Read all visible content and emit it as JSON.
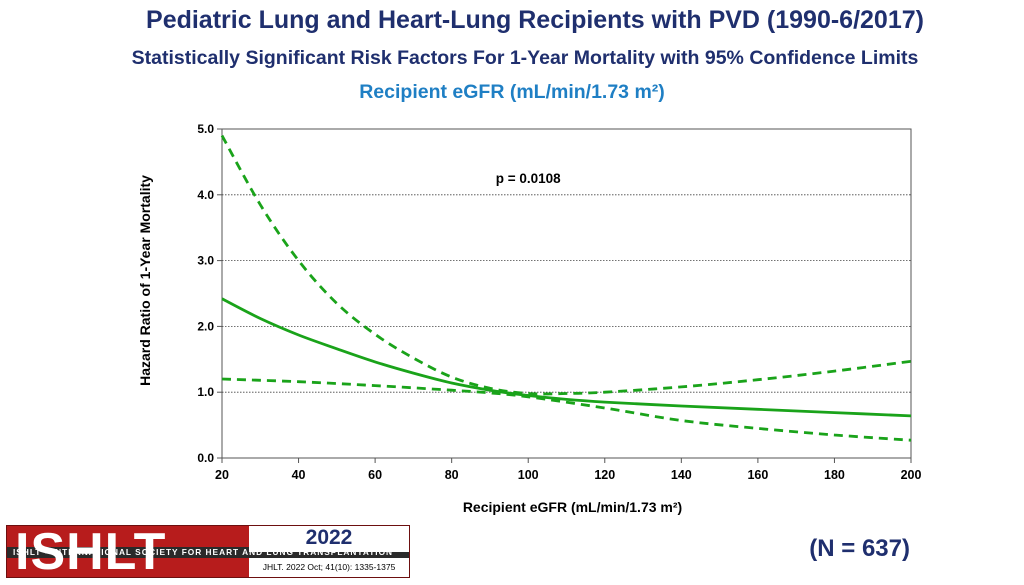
{
  "header": {
    "title": "Pediatric Lung and Heart-Lung Recipients with PVD (1990-6/2017)",
    "subtitle": "Statistically Significant Risk Factors For 1-Year Mortality with 95% Confidence Limits",
    "variable": "Recipient eGFR (mL/min/1.73 m²)"
  },
  "footer": {
    "n_label": "(N = 637)",
    "logo_text": "ISHLT",
    "logo_strip": "ISHLT • INTERNATIONAL SOCIETY FOR HEART AND LUNG TRANSPLANTATION",
    "year": "2022",
    "citation": "JHLT. 2022 Oct; 41(10): 1335-1375"
  },
  "colors": {
    "line": "#1aa31a",
    "title": "#1f2f6e",
    "variable": "#1f7fc4",
    "logo_red": "#b71c1c"
  },
  "chart_data": {
    "type": "line",
    "xlabel": "Recipient eGFR (mL/min/1.73 m²)",
    "ylabel": "Hazard Ratio of 1-Year Mortality",
    "xlim": [
      20,
      200
    ],
    "ylim": [
      0,
      5
    ],
    "xticks": [
      "20",
      "40",
      "60",
      "80",
      "100",
      "120",
      "140",
      "160",
      "180",
      "200"
    ],
    "yticks": [
      "0.0",
      "1.0",
      "2.0",
      "3.0",
      "4.0",
      "5.0"
    ],
    "annotation": "p = 0.0108",
    "grid": "horizontal-dotted",
    "series": [
      {
        "name": "Hazard ratio",
        "style": "solid",
        "x": [
          20,
          30,
          40,
          50,
          60,
          70,
          80,
          90,
          100,
          110,
          120,
          140,
          160,
          180,
          200
        ],
        "y": [
          2.42,
          2.12,
          1.87,
          1.66,
          1.46,
          1.29,
          1.14,
          1.03,
          0.95,
          0.89,
          0.85,
          0.79,
          0.74,
          0.69,
          0.64
        ]
      },
      {
        "name": "Upper 95% confidence limit",
        "style": "dashed",
        "x": [
          20,
          30,
          40,
          50,
          60,
          70,
          80,
          90,
          100,
          110,
          120,
          140,
          160,
          180,
          200
        ],
        "y": [
          4.9,
          3.85,
          3.0,
          2.35,
          1.88,
          1.52,
          1.23,
          1.06,
          0.98,
          0.98,
          1.0,
          1.08,
          1.19,
          1.32,
          1.47
        ]
      },
      {
        "name": "Lower 95% confidence limit",
        "style": "dashed",
        "x": [
          20,
          40,
          60,
          80,
          90,
          100,
          120,
          140,
          160,
          180,
          200
        ],
        "y": [
          1.2,
          1.16,
          1.1,
          1.03,
          0.99,
          0.93,
          0.76,
          0.57,
          0.45,
          0.35,
          0.27
        ]
      }
    ]
  }
}
